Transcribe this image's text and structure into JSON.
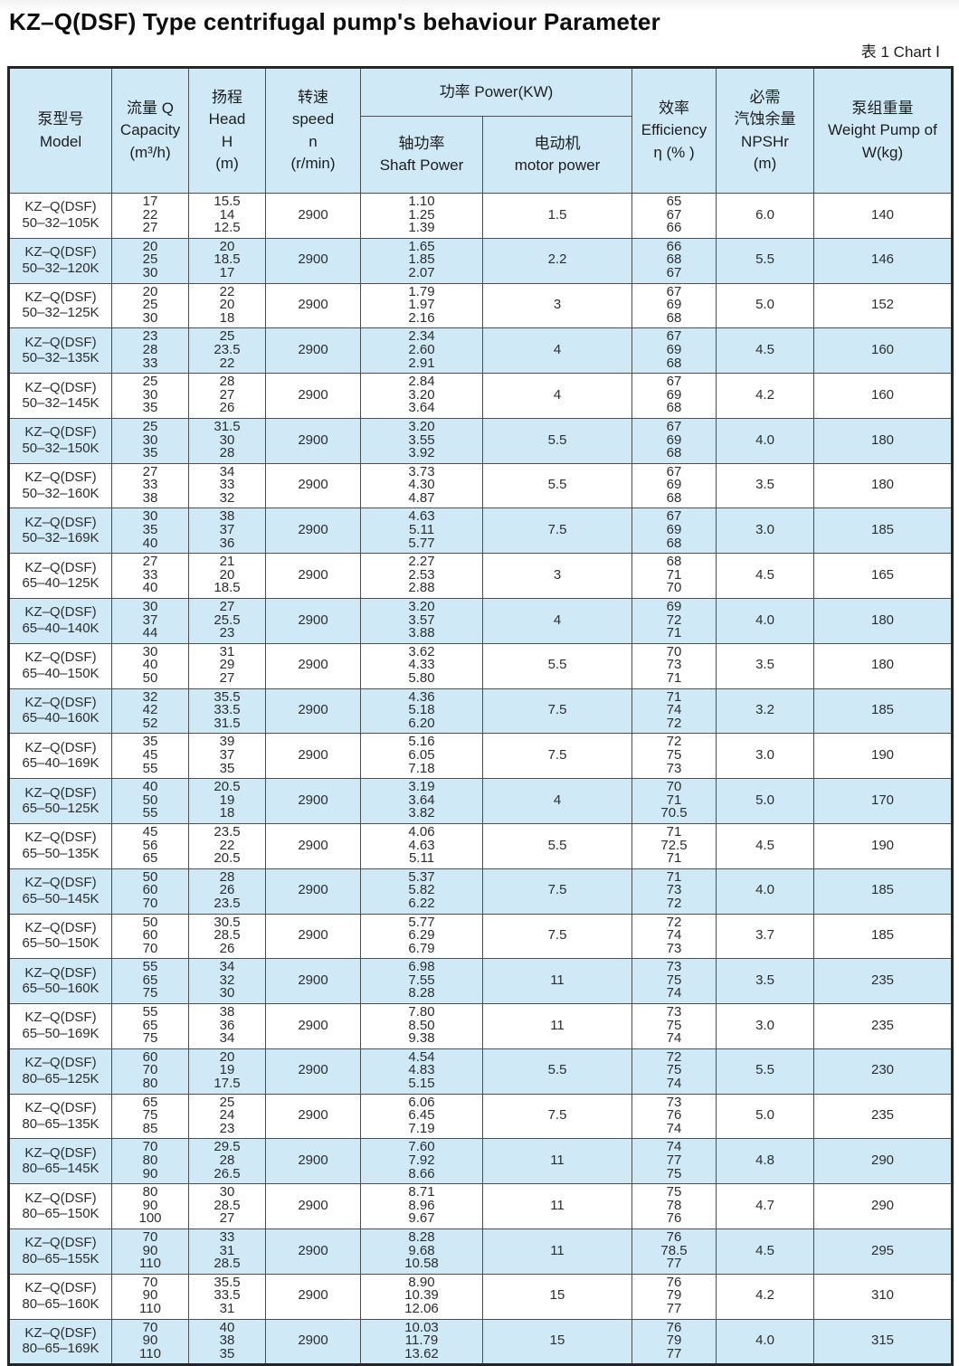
{
  "page": {
    "title": "KZ–Q(DSF) Type centrifugal pump's behaviour Parameter",
    "chart_label": "表 1  Chart Ⅰ"
  },
  "table": {
    "header": {
      "model": [
        "泵型号",
        "Model"
      ],
      "capacity": [
        "流量 Q",
        "Capacity",
        "(m³/h)"
      ],
      "head": [
        "扬程",
        "Head",
        "H",
        "(m)"
      ],
      "speed": [
        "转速",
        "speed",
        "n",
        "(r/min)"
      ],
      "power_group": "功率 Power(KW)",
      "shaft_power": [
        "轴功率",
        "Shaft Power"
      ],
      "motor_power": [
        "电动机",
        "motor power"
      ],
      "efficiency": [
        "效率",
        "Efficiency",
        "η (% )"
      ],
      "npshr": [
        "必需",
        "汽蚀余量",
        "NPSHr",
        "(m)"
      ],
      "weight": [
        "泵组重量",
        "Weight Pump of",
        "W(kg)"
      ]
    },
    "rows": [
      {
        "model": [
          "KZ–Q(DSF)",
          "50–32–105K"
        ],
        "capacity": [
          "17",
          "22",
          "27"
        ],
        "head": [
          "15.5",
          "14",
          "12.5"
        ],
        "speed": "2900",
        "shaft_power": [
          "1.10",
          "1.25",
          "1.39"
        ],
        "motor_power": "1.5",
        "efficiency": [
          "65",
          "67",
          "66"
        ],
        "npshr": "6.0",
        "weight": "140"
      },
      {
        "model": [
          "KZ–Q(DSF)",
          "50–32–120K"
        ],
        "capacity": [
          "20",
          "25",
          "30"
        ],
        "head": [
          "20",
          "18.5",
          "17"
        ],
        "speed": "2900",
        "shaft_power": [
          "1.65",
          "1.85",
          "2.07"
        ],
        "motor_power": "2.2",
        "efficiency": [
          "66",
          "68",
          "67"
        ],
        "npshr": "5.5",
        "weight": "146"
      },
      {
        "model": [
          "KZ–Q(DSF)",
          "50–32–125K"
        ],
        "capacity": [
          "20",
          "25",
          "30"
        ],
        "head": [
          "22",
          "20",
          "18"
        ],
        "speed": "2900",
        "shaft_power": [
          "1.79",
          "1.97",
          "2.16"
        ],
        "motor_power": "3",
        "efficiency": [
          "67",
          "69",
          "68"
        ],
        "npshr": "5.0",
        "weight": "152"
      },
      {
        "model": [
          "KZ–Q(DSF)",
          "50–32–135K"
        ],
        "capacity": [
          "23",
          "28",
          "33"
        ],
        "head": [
          "25",
          "23.5",
          "22"
        ],
        "speed": "2900",
        "shaft_power": [
          "2.34",
          "2.60",
          "2.91"
        ],
        "motor_power": "4",
        "efficiency": [
          "67",
          "69",
          "68"
        ],
        "npshr": "4.5",
        "weight": "160"
      },
      {
        "model": [
          "KZ–Q(DSF)",
          "50–32–145K"
        ],
        "capacity": [
          "25",
          "30",
          "35"
        ],
        "head": [
          "28",
          "27",
          "26"
        ],
        "speed": "2900",
        "shaft_power": [
          "2.84",
          "3.20",
          "3.64"
        ],
        "motor_power": "4",
        "efficiency": [
          "67",
          "69",
          "68"
        ],
        "npshr": "4.2",
        "weight": "160"
      },
      {
        "model": [
          "KZ–Q(DSF)",
          "50–32–150K"
        ],
        "capacity": [
          "25",
          "30",
          "35"
        ],
        "head": [
          "31.5",
          "30",
          "28"
        ],
        "speed": "2900",
        "shaft_power": [
          "3.20",
          "3.55",
          "3.92"
        ],
        "motor_power": "5.5",
        "efficiency": [
          "67",
          "69",
          "68"
        ],
        "npshr": "4.0",
        "weight": "180"
      },
      {
        "model": [
          "KZ–Q(DSF)",
          "50–32–160K"
        ],
        "capacity": [
          "27",
          "33",
          "38"
        ],
        "head": [
          "34",
          "33",
          "32"
        ],
        "speed": "2900",
        "shaft_power": [
          "3.73",
          "4.30",
          "4.87"
        ],
        "motor_power": "5.5",
        "efficiency": [
          "67",
          "69",
          "68"
        ],
        "npshr": "3.5",
        "weight": "180"
      },
      {
        "model": [
          "KZ–Q(DSF)",
          "50–32–169K"
        ],
        "capacity": [
          "30",
          "35",
          "40"
        ],
        "head": [
          "38",
          "37",
          "36"
        ],
        "speed": "2900",
        "shaft_power": [
          "4.63",
          "5.11",
          "5.77"
        ],
        "motor_power": "7.5",
        "efficiency": [
          "67",
          "69",
          "68"
        ],
        "npshr": "3.0",
        "weight": "185"
      },
      {
        "model": [
          "KZ–Q(DSF)",
          "65–40–125K"
        ],
        "capacity": [
          "27",
          "33",
          "40"
        ],
        "head": [
          "21",
          "20",
          "18.5"
        ],
        "speed": "2900",
        "shaft_power": [
          "2.27",
          "2.53",
          "2.88"
        ],
        "motor_power": "3",
        "efficiency": [
          "68",
          "71",
          "70"
        ],
        "npshr": "4.5",
        "weight": "165"
      },
      {
        "model": [
          "KZ–Q(DSF)",
          "65–40–140K"
        ],
        "capacity": [
          "30",
          "37",
          "44"
        ],
        "head": [
          "27",
          "25.5",
          "23"
        ],
        "speed": "2900",
        "shaft_power": [
          "3.20",
          "3.57",
          "3.88"
        ],
        "motor_power": "4",
        "efficiency": [
          "69",
          "72",
          "71"
        ],
        "npshr": "4.0",
        "weight": "180"
      },
      {
        "model": [
          "KZ–Q(DSF)",
          "65–40–150K"
        ],
        "capacity": [
          "30",
          "40",
          "50"
        ],
        "head": [
          "31",
          "29",
          "27"
        ],
        "speed": "2900",
        "shaft_power": [
          "3.62",
          "4.33",
          "5.80"
        ],
        "motor_power": "5.5",
        "efficiency": [
          "70",
          "73",
          "71"
        ],
        "npshr": "3.5",
        "weight": "180"
      },
      {
        "model": [
          "KZ–Q(DSF)",
          "65–40–160K"
        ],
        "capacity": [
          "32",
          "42",
          "52"
        ],
        "head": [
          "35.5",
          "33.5",
          "31.5"
        ],
        "speed": "2900",
        "shaft_power": [
          "4.36",
          "5.18",
          "6.20"
        ],
        "motor_power": "7.5",
        "efficiency": [
          "71",
          "74",
          "72"
        ],
        "npshr": "3.2",
        "weight": "185"
      },
      {
        "model": [
          "KZ–Q(DSF)",
          "65–40–169K"
        ],
        "capacity": [
          "35",
          "45",
          "55"
        ],
        "head": [
          "39",
          "37",
          "35"
        ],
        "speed": "2900",
        "shaft_power": [
          "5.16",
          "6.05",
          "7.18"
        ],
        "motor_power": "7.5",
        "efficiency": [
          "72",
          "75",
          "73"
        ],
        "npshr": "3.0",
        "weight": "190"
      },
      {
        "model": [
          "KZ–Q(DSF)",
          "65–50–125K"
        ],
        "capacity": [
          "40",
          "50",
          "55"
        ],
        "head": [
          "20.5",
          "19",
          "18"
        ],
        "speed": "2900",
        "shaft_power": [
          "3.19",
          "3.64",
          "3.82"
        ],
        "motor_power": "4",
        "efficiency": [
          "70",
          "71",
          "70.5"
        ],
        "npshr": "5.0",
        "weight": "170"
      },
      {
        "model": [
          "KZ–Q(DSF)",
          "65–50–135K"
        ],
        "capacity": [
          "45",
          "56",
          "65"
        ],
        "head": [
          "23.5",
          "22",
          "20.5"
        ],
        "speed": "2900",
        "shaft_power": [
          "4.06",
          "4.63",
          "5.11"
        ],
        "motor_power": "5.5",
        "efficiency": [
          "71",
          "72.5",
          "71"
        ],
        "npshr": "4.5",
        "weight": "190"
      },
      {
        "model": [
          "KZ–Q(DSF)",
          "65–50–145K"
        ],
        "capacity": [
          "50",
          "60",
          "70"
        ],
        "head": [
          "28",
          "26",
          "23.5"
        ],
        "speed": "2900",
        "shaft_power": [
          "5.37",
          "5.82",
          "6.22"
        ],
        "motor_power": "7.5",
        "efficiency": [
          "71",
          "73",
          "72"
        ],
        "npshr": "4.0",
        "weight": "185"
      },
      {
        "model": [
          "KZ–Q(DSF)",
          "65–50–150K"
        ],
        "capacity": [
          "50",
          "60",
          "70"
        ],
        "head": [
          "30.5",
          "28.5",
          "26"
        ],
        "speed": "2900",
        "shaft_power": [
          "5.77",
          "6.29",
          "6.79"
        ],
        "motor_power": "7.5",
        "efficiency": [
          "72",
          "74",
          "73"
        ],
        "npshr": "3.7",
        "weight": "185"
      },
      {
        "model": [
          "KZ–Q(DSF)",
          "65–50–160K"
        ],
        "capacity": [
          "55",
          "65",
          "75"
        ],
        "head": [
          "34",
          "32",
          "30"
        ],
        "speed": "2900",
        "shaft_power": [
          "6.98",
          "7.55",
          "8.28"
        ],
        "motor_power": "11",
        "efficiency": [
          "73",
          "75",
          "74"
        ],
        "npshr": "3.5",
        "weight": "235"
      },
      {
        "model": [
          "KZ–Q(DSF)",
          "65–50–169K"
        ],
        "capacity": [
          "55",
          "65",
          "75"
        ],
        "head": [
          "38",
          "36",
          "34"
        ],
        "speed": "2900",
        "shaft_power": [
          "7.80",
          "8.50",
          "9.38"
        ],
        "motor_power": "11",
        "efficiency": [
          "73",
          "75",
          "74"
        ],
        "npshr": "3.0",
        "weight": "235"
      },
      {
        "model": [
          "KZ–Q(DSF)",
          "80–65–125K"
        ],
        "capacity": [
          "60",
          "70",
          "80"
        ],
        "head": [
          "20",
          "19",
          "17.5"
        ],
        "speed": "2900",
        "shaft_power": [
          "4.54",
          "4.83",
          "5.15"
        ],
        "motor_power": "5.5",
        "efficiency": [
          "72",
          "75",
          "74"
        ],
        "npshr": "5.5",
        "weight": "230"
      },
      {
        "model": [
          "KZ–Q(DSF)",
          "80–65–135K"
        ],
        "capacity": [
          "65",
          "75",
          "85"
        ],
        "head": [
          "25",
          "24",
          "23"
        ],
        "speed": "2900",
        "shaft_power": [
          "6.06",
          "6.45",
          "7.19"
        ],
        "motor_power": "7.5",
        "efficiency": [
          "73",
          "76",
          "74"
        ],
        "npshr": "5.0",
        "weight": "235"
      },
      {
        "model": [
          "KZ–Q(DSF)",
          "80–65–145K"
        ],
        "capacity": [
          "70",
          "80",
          "90"
        ],
        "head": [
          "29.5",
          "28",
          "26.5"
        ],
        "speed": "2900",
        "shaft_power": [
          "7.60",
          "7.92",
          "8.66"
        ],
        "motor_power": "11",
        "efficiency": [
          "74",
          "77",
          "75"
        ],
        "npshr": "4.8",
        "weight": "290"
      },
      {
        "model": [
          "KZ–Q(DSF)",
          "80–65–150K"
        ],
        "capacity": [
          "80",
          "90",
          "100"
        ],
        "head": [
          "30",
          "28.5",
          "27"
        ],
        "speed": "2900",
        "shaft_power": [
          "8.71",
          "8.96",
          "9.67"
        ],
        "motor_power": "11",
        "efficiency": [
          "75",
          "78",
          "76"
        ],
        "npshr": "4.7",
        "weight": "290"
      },
      {
        "model": [
          "KZ–Q(DSF)",
          "80–65–155K"
        ],
        "capacity": [
          "70",
          "90",
          "110"
        ],
        "head": [
          "33",
          "31",
          "28.5"
        ],
        "speed": "2900",
        "shaft_power": [
          "8.28",
          "9.68",
          "10.58"
        ],
        "motor_power": "11",
        "efficiency": [
          "76",
          "78.5",
          "77"
        ],
        "npshr": "4.5",
        "weight": "295"
      },
      {
        "model": [
          "KZ–Q(DSF)",
          "80–65–160K"
        ],
        "capacity": [
          "70",
          "90",
          "110"
        ],
        "head": [
          "35.5",
          "33.5",
          "31"
        ],
        "speed": "2900",
        "shaft_power": [
          "8.90",
          "10.39",
          "12.06"
        ],
        "motor_power": "15",
        "efficiency": [
          "76",
          "79",
          "77"
        ],
        "npshr": "4.2",
        "weight": "310"
      },
      {
        "model": [
          "KZ–Q(DSF)",
          "80–65–169K"
        ],
        "capacity": [
          "70",
          "90",
          "110"
        ],
        "head": [
          "40",
          "38",
          "35"
        ],
        "speed": "2900",
        "shaft_power": [
          "10.03",
          "11.79",
          "13.62"
        ],
        "motor_power": "15",
        "efficiency": [
          "76",
          "79",
          "77"
        ],
        "npshr": "4.0",
        "weight": "315"
      }
    ]
  }
}
